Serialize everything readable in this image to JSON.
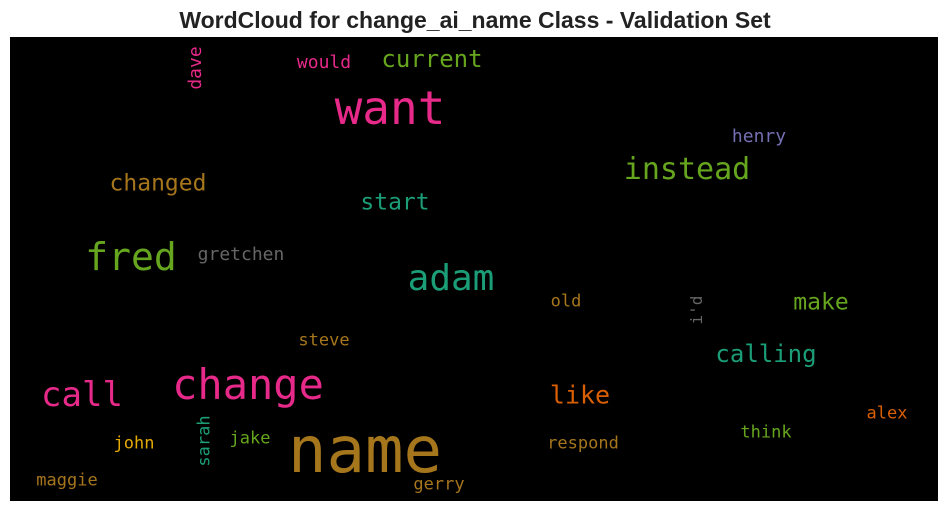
{
  "chart_data": {
    "type": "wordcloud",
    "title": "WordCloud for change_ai_name Class - Validation Set",
    "words": [
      {
        "text": "name",
        "color": "#a6761d",
        "orientation": "horizontal"
      },
      {
        "text": "want",
        "color": "#e7298a",
        "orientation": "horizontal"
      },
      {
        "text": "change",
        "color": "#e7298a",
        "orientation": "horizontal"
      },
      {
        "text": "adam",
        "color": "#1b9e77",
        "orientation": "horizontal"
      },
      {
        "text": "fred",
        "color": "#66a61e",
        "orientation": "horizontal"
      },
      {
        "text": "call",
        "color": "#e7298a",
        "orientation": "horizontal"
      },
      {
        "text": "instead",
        "color": "#66a61e",
        "orientation": "horizontal"
      },
      {
        "text": "calling",
        "color": "#1b9e77",
        "orientation": "horizontal"
      },
      {
        "text": "changed",
        "color": "#a6761d",
        "orientation": "horizontal"
      },
      {
        "text": "current",
        "color": "#66a61e",
        "orientation": "horizontal"
      },
      {
        "text": "make",
        "color": "#66a61e",
        "orientation": "horizontal"
      },
      {
        "text": "like",
        "color": "#d95f02",
        "orientation": "horizontal"
      },
      {
        "text": "start",
        "color": "#1b9e77",
        "orientation": "horizontal"
      },
      {
        "text": "henry",
        "color": "#7570b3",
        "orientation": "horizontal"
      },
      {
        "text": "would",
        "color": "#e7298a",
        "orientation": "horizontal"
      },
      {
        "text": "dave",
        "color": "#e7298a",
        "orientation": "vertical"
      },
      {
        "text": "gretchen",
        "color": "#666666",
        "orientation": "horizontal"
      },
      {
        "text": "old",
        "color": "#a6761d",
        "orientation": "horizontal"
      },
      {
        "text": "i'd",
        "color": "#666666",
        "orientation": "vertical"
      },
      {
        "text": "steve",
        "color": "#a6761d",
        "orientation": "horizontal"
      },
      {
        "text": "alex",
        "color": "#d95f02",
        "orientation": "horizontal"
      },
      {
        "text": "think",
        "color": "#66a61e",
        "orientation": "horizontal"
      },
      {
        "text": "john",
        "color": "#e6ab02",
        "orientation": "horizontal"
      },
      {
        "text": "sarah",
        "color": "#1b9e77",
        "orientation": "vertical"
      },
      {
        "text": "jake",
        "color": "#66a61e",
        "orientation": "horizontal"
      },
      {
        "text": "respond",
        "color": "#a6761d",
        "orientation": "horizontal"
      },
      {
        "text": "maggie",
        "color": "#a6761d",
        "orientation": "horizontal"
      },
      {
        "text": "gerry",
        "color": "#a6761d",
        "orientation": "horizontal"
      }
    ]
  }
}
